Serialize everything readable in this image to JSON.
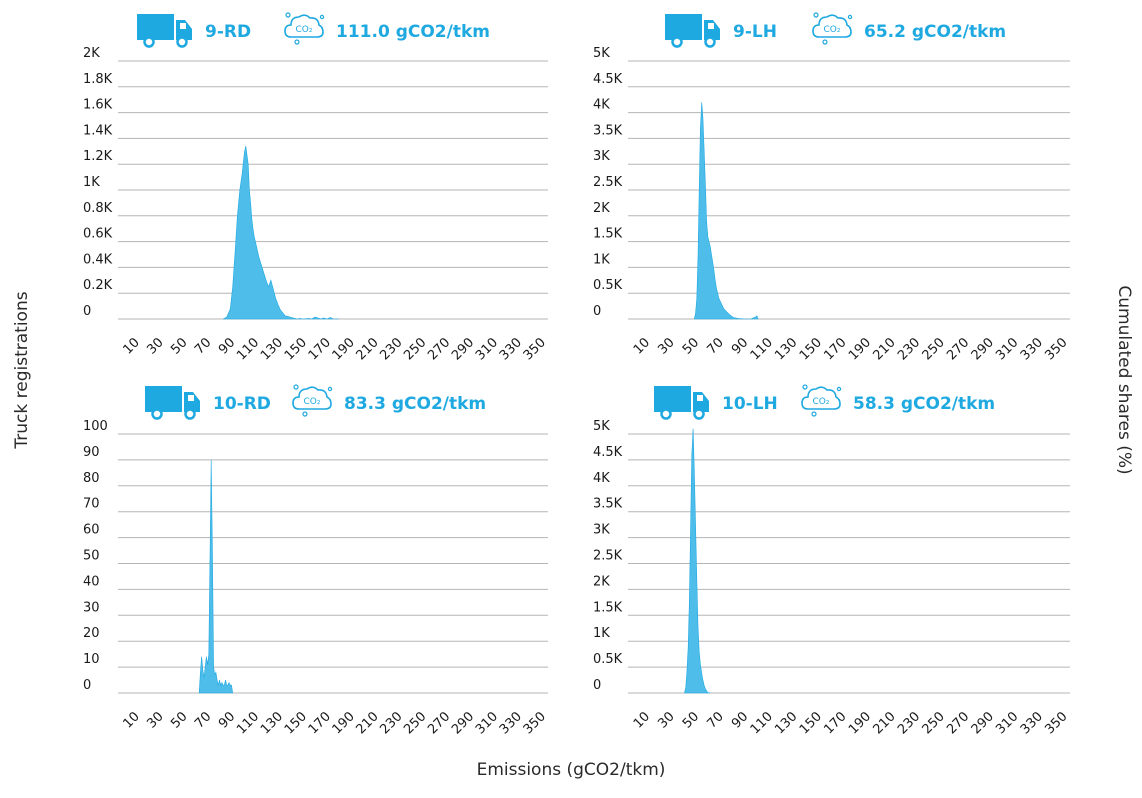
{
  "axis_labels": {
    "y_left": "Truck registrations",
    "y_right": "Cumulated shares (%)",
    "x": "Emissions (gCO2/tkm)"
  },
  "colors": {
    "accent": "#1fa9e1",
    "fill": "#4fbdea",
    "grid": "#b5b5b5",
    "text": "#1a1a1a"
  },
  "icons": {
    "truck": "truck-icon",
    "co2": "co2-cloud-icon"
  },
  "chart_data": [
    {
      "type": "area",
      "group": "9-RD",
      "emission_label": "111.0 gCO2/tkm",
      "y_tick_labels": [
        "2K",
        "1.8K",
        "1.6K",
        "1.4K",
        "1.2K",
        "1K",
        "0.8K",
        "0.6K",
        "0.4K",
        "0.2K",
        "0"
      ],
      "x_tick_labels": [
        "10",
        "30",
        "50",
        "70",
        "90",
        "110",
        "130",
        "150",
        "170",
        "190",
        "210",
        "230",
        "250",
        "270",
        "290",
        "310",
        "330",
        "350"
      ],
      "ylim": [
        0,
        2000
      ],
      "xlim": [
        0,
        360
      ],
      "grid": true,
      "x": [
        88,
        91,
        94,
        96,
        98,
        100,
        102,
        104,
        105,
        106,
        107,
        108,
        109,
        110,
        111,
        112,
        113,
        114,
        116,
        118,
        120,
        122,
        124,
        126,
        128,
        130,
        132,
        134,
        136,
        140,
        150,
        152,
        155,
        160,
        162,
        165,
        170,
        172,
        175,
        178,
        180,
        185
      ],
      "y": [
        0,
        15,
        80,
        250,
        520,
        800,
        1000,
        1130,
        1220,
        1300,
        1340,
        1270,
        1200,
        1000,
        900,
        780,
        700,
        640,
        560,
        480,
        420,
        360,
        300,
        250,
        300,
        230,
        160,
        110,
        70,
        25,
        0,
        5,
        0,
        5,
        0,
        15,
        0,
        8,
        0,
        12,
        0,
        0
      ]
    },
    {
      "type": "area",
      "group": "9-LH",
      "emission_label": "65.2 gCO2/tkm",
      "y_tick_labels": [
        "5K",
        "4.5K",
        "4K",
        "3.5K",
        "3K",
        "2.5K",
        "2K",
        "1.5K",
        "1K",
        "0.5K",
        "0"
      ],
      "x_tick_labels": [
        "10",
        "30",
        "50",
        "70",
        "90",
        "110",
        "130",
        "150",
        "170",
        "190",
        "210",
        "230",
        "250",
        "270",
        "290",
        "310",
        "330",
        "350"
      ],
      "ylim": [
        0,
        5000
      ],
      "xlim": [
        0,
        360
      ],
      "grid": true,
      "x": [
        54,
        55,
        56,
        57,
        58,
        59,
        60,
        61,
        62,
        63,
        64,
        65,
        66,
        67,
        68,
        69,
        70,
        71,
        72,
        74,
        75,
        76,
        78,
        80,
        82,
        84,
        86,
        88,
        90,
        92,
        95,
        100,
        104,
        105,
        106
      ],
      "y": [
        0,
        100,
        400,
        1200,
        2500,
        3700,
        4200,
        3900,
        3300,
        2600,
        1900,
        1600,
        1500,
        1400,
        1250,
        1100,
        950,
        750,
        600,
        400,
        350,
        300,
        200,
        150,
        100,
        60,
        30,
        20,
        10,
        5,
        0,
        0,
        40,
        60,
        0
      ]
    },
    {
      "type": "area",
      "group": "10-RD",
      "emission_label": "83.3 gCO2/tkm",
      "y_tick_labels": [
        "100",
        "90",
        "80",
        "70",
        "60",
        "50",
        "40",
        "30",
        "20",
        "10",
        "0"
      ],
      "x_tick_labels": [
        "10",
        "30",
        "50",
        "70",
        "90",
        "110",
        "130",
        "150",
        "170",
        "190",
        "210",
        "230",
        "250",
        "270",
        "290",
        "310",
        "330",
        "350"
      ],
      "ylim": [
        0,
        100
      ],
      "xlim": [
        0,
        360
      ],
      "grid": true,
      "x": [
        68,
        69,
        70,
        71,
        72,
        73,
        74,
        75,
        76,
        77,
        78,
        79,
        80,
        81,
        82,
        83,
        84,
        85,
        86,
        87,
        88,
        89,
        90,
        91,
        92,
        93,
        94,
        95,
        96
      ],
      "y": [
        0,
        8,
        14,
        9,
        6,
        10,
        14,
        11,
        15,
        52,
        90,
        55,
        10,
        7,
        8,
        5,
        3,
        5,
        3,
        4,
        3,
        3,
        5,
        3,
        3,
        4,
        3,
        3,
        0
      ]
    },
    {
      "type": "area",
      "group": "10-LH",
      "emission_label": "58.3 gCO2/tkm",
      "y_tick_labels": [
        "5K",
        "4.5K",
        "4K",
        "3.5K",
        "3K",
        "2.5K",
        "2K",
        "1.5K",
        "1K",
        "0.5K",
        "0"
      ],
      "x_tick_labels": [
        "10",
        "30",
        "50",
        "70",
        "90",
        "110",
        "130",
        "150",
        "170",
        "190",
        "210",
        "230",
        "250",
        "270",
        "290",
        "310",
        "330",
        "350"
      ],
      "ylim": [
        0,
        5000
      ],
      "xlim": [
        0,
        360
      ],
      "grid": true,
      "x": [
        46,
        47,
        48,
        49,
        50,
        51,
        52,
        53,
        54,
        55,
        56,
        57,
        58,
        59,
        60,
        61,
        62,
        63,
        64,
        65,
        67
      ],
      "y": [
        0,
        100,
        400,
        900,
        1800,
        3200,
        4600,
        5100,
        4300,
        3300,
        2200,
        1300,
        800,
        550,
        380,
        250,
        150,
        80,
        40,
        10,
        0
      ]
    }
  ]
}
